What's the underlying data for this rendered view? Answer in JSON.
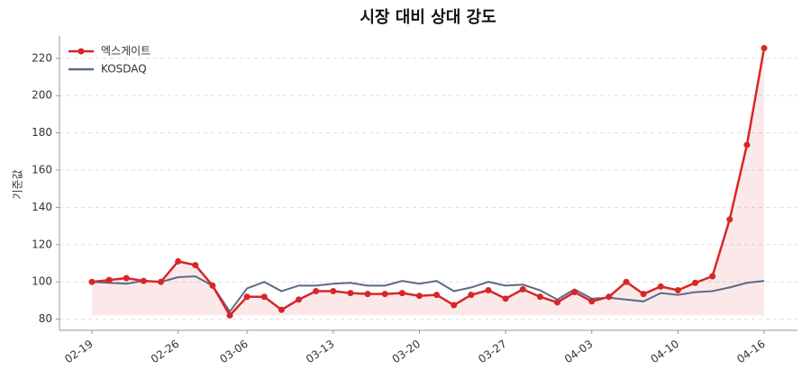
{
  "chart_data": {
    "type": "line",
    "title": "시장 대비 상대 강도",
    "y_label": "기준값",
    "categories": [
      "02-19",
      null,
      null,
      null,
      null,
      "02-26",
      null,
      null,
      null,
      "03-06",
      null,
      null,
      null,
      null,
      "03-13",
      null,
      null,
      null,
      null,
      "03-20",
      null,
      null,
      null,
      null,
      "03-27",
      null,
      null,
      null,
      null,
      "04-03",
      null,
      null,
      null,
      null,
      "04-10",
      null,
      null,
      null,
      null,
      "04-16"
    ],
    "series": [
      {
        "name": "엑스게이트",
        "color": "#d62728",
        "markers": true,
        "fill": true,
        "values": [
          100,
          101,
          102,
          100.5,
          100,
          111,
          109,
          98,
          82,
          92,
          92,
          85,
          90.5,
          95,
          95,
          94,
          93.5,
          93.5,
          94,
          92.5,
          93,
          87.5,
          93,
          95.5,
          91,
          96,
          92,
          89,
          94.5,
          89.5,
          92,
          100,
          93.5,
          97.5,
          95.5,
          99.5,
          103,
          133.5,
          173.5,
          225.5
        ]
      },
      {
        "name": "KOSDAQ",
        "color": "#5a6a85",
        "markers": false,
        "fill": false,
        "values": [
          100,
          99.5,
          99,
          100.5,
          100,
          102.5,
          103,
          98,
          84,
          96.5,
          100,
          95,
          98,
          98,
          99,
          99.5,
          98,
          98,
          100.5,
          99,
          100.5,
          95,
          97,
          100,
          98,
          98.5,
          95.5,
          90.5,
          96,
          91,
          91.5,
          90.5,
          89.5,
          94,
          93,
          94.5,
          95,
          97,
          99.5,
          100.5
        ]
      }
    ],
    "ylim": [
      74,
      232
    ],
    "yticks": [
      80,
      100,
      120,
      140,
      160,
      180,
      200,
      220
    ],
    "grid": true,
    "legend": "upper left"
  }
}
